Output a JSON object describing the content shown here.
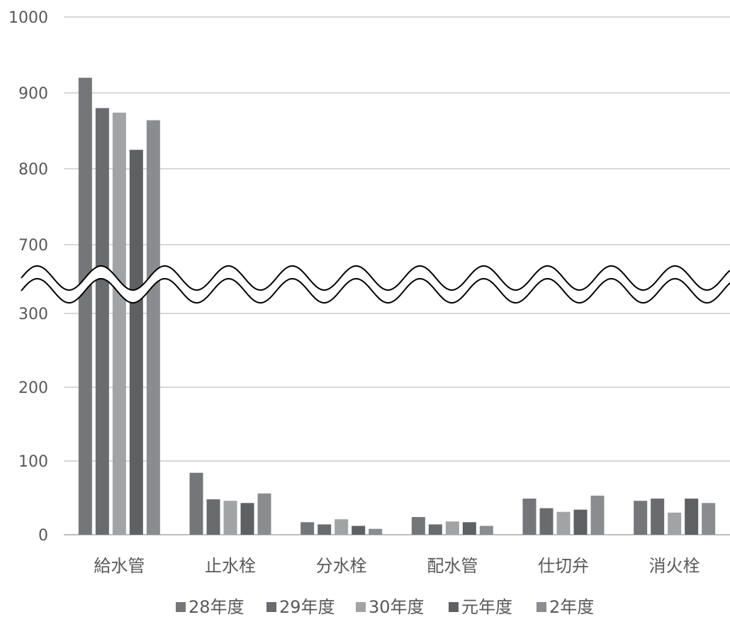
{
  "chart_data": {
    "type": "bar",
    "title": "",
    "xlabel": "",
    "ylabel": "",
    "axis_break": {
      "from": 300,
      "to": 700
    },
    "ylim": [
      0,
      1000
    ],
    "y_ticks_lower": [
      "0",
      "100",
      "200",
      "300"
    ],
    "y_ticks_upper": [
      "700",
      "800",
      "900",
      "1000"
    ],
    "categories": [
      "給水管",
      "止水栓",
      "分水栓",
      "配水管",
      "仕切弁",
      "消火栓"
    ],
    "series": [
      {
        "name": "28年度",
        "color": "#75767a",
        "values": [
          920,
          84,
          17,
          24,
          49,
          46
        ]
      },
      {
        "name": "29年度",
        "color": "#6a6b6f",
        "values": [
          880,
          48,
          14,
          14,
          36,
          49
        ]
      },
      {
        "name": "30年度",
        "color": "#a2a3a7",
        "values": [
          874,
          46,
          21,
          18,
          31,
          30
        ]
      },
      {
        "name": "元年度",
        "color": "#5f6064",
        "values": [
          825,
          43,
          12,
          17,
          34,
          49
        ]
      },
      {
        "name": "2年度",
        "color": "#8b8c90",
        "values": [
          864,
          56,
          8,
          12,
          53,
          43
        ]
      }
    ],
    "grid": true,
    "legend_position": "bottom"
  }
}
